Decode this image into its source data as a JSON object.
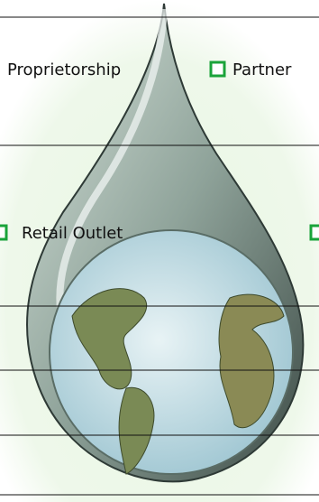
{
  "form": {
    "options": [
      "Proprietorship",
      "Partner",
      "Retail Outlet"
    ]
  }
}
